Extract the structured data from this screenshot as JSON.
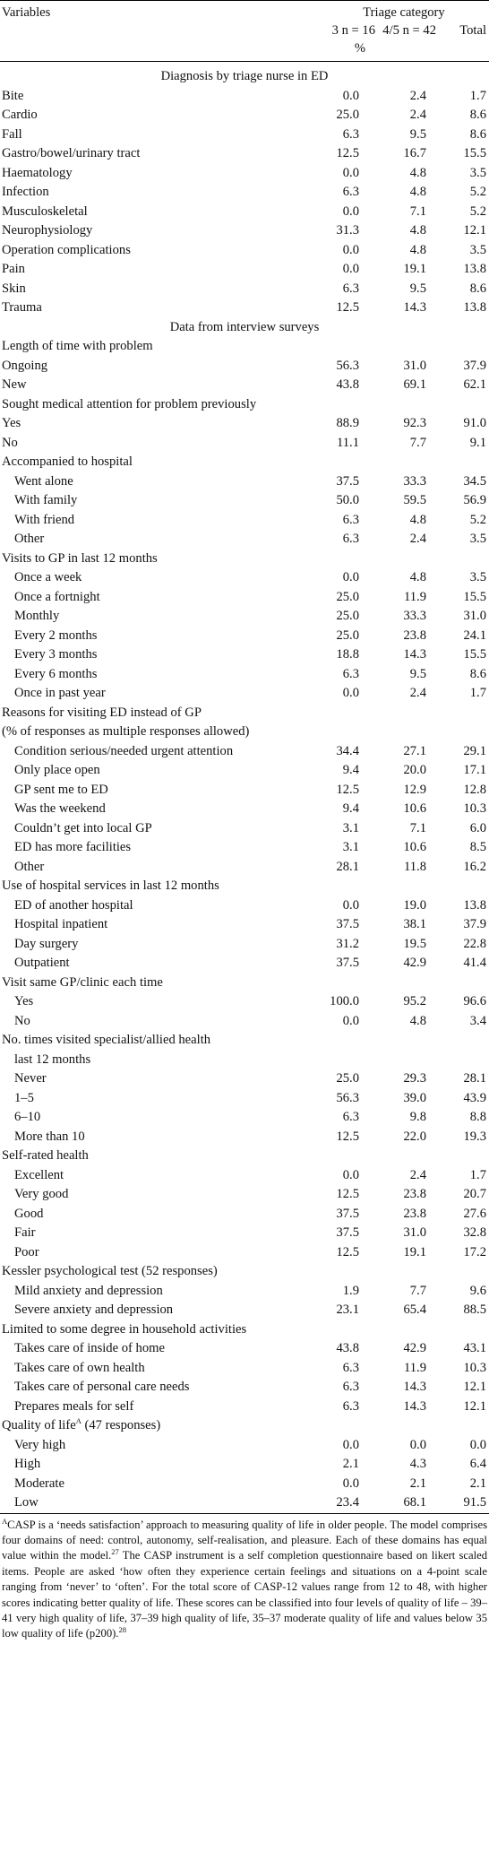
{
  "header": {
    "variables": "Variables",
    "triage_category": "Triage category",
    "col1": "3 n = 16",
    "col2": "4/5 n = 42",
    "col3": "Total",
    "unit": "%"
  },
  "rows": [
    {
      "type": "section",
      "label": "Diagnosis by triage nurse in ED"
    },
    {
      "type": "row",
      "label": "Bite",
      "v": [
        "0.0",
        "2.4",
        "1.7"
      ]
    },
    {
      "type": "row",
      "label": "Cardio",
      "v": [
        "25.0",
        "2.4",
        "8.6"
      ]
    },
    {
      "type": "row",
      "label": "Fall",
      "v": [
        "6.3",
        "9.5",
        "8.6"
      ]
    },
    {
      "type": "row",
      "label": "Gastro/bowel/urinary tract",
      "v": [
        "12.5",
        "16.7",
        "15.5"
      ]
    },
    {
      "type": "row",
      "label": "Haematology",
      "v": [
        "0.0",
        "4.8",
        "3.5"
      ]
    },
    {
      "type": "row",
      "label": "Infection",
      "v": [
        "6.3",
        "4.8",
        "5.2"
      ]
    },
    {
      "type": "row",
      "label": "Musculoskeletal",
      "v": [
        "0.0",
        "7.1",
        "5.2"
      ]
    },
    {
      "type": "row",
      "label": "Neurophysiology",
      "v": [
        "31.3",
        "4.8",
        "12.1"
      ]
    },
    {
      "type": "row",
      "label": "Operation complications",
      "v": [
        "0.0",
        "4.8",
        "3.5"
      ]
    },
    {
      "type": "row",
      "label": "Pain",
      "v": [
        "0.0",
        "19.1",
        "13.8"
      ]
    },
    {
      "type": "row",
      "label": "Skin",
      "v": [
        "6.3",
        "9.5",
        "8.6"
      ]
    },
    {
      "type": "row",
      "label": "Trauma",
      "v": [
        "12.5",
        "14.3",
        "13.8"
      ]
    },
    {
      "type": "section",
      "label": "Data from interview surveys"
    },
    {
      "type": "heading",
      "label": "Length of time with problem"
    },
    {
      "type": "row",
      "label": "Ongoing",
      "v": [
        "56.3",
        "31.0",
        "37.9"
      ]
    },
    {
      "type": "row",
      "label": "New",
      "v": [
        "43.8",
        "69.1",
        "62.1"
      ]
    },
    {
      "type": "heading",
      "label": "Sought medical attention for problem previously"
    },
    {
      "type": "row",
      "label": "Yes",
      "v": [
        "88.9",
        "92.3",
        "91.0"
      ]
    },
    {
      "type": "row",
      "label": "No",
      "v": [
        "11.1",
        "7.7",
        "9.1"
      ]
    },
    {
      "type": "heading",
      "label": "Accompanied to hospital"
    },
    {
      "type": "row",
      "indent": true,
      "label": "Went alone",
      "v": [
        "37.5",
        "33.3",
        "34.5"
      ]
    },
    {
      "type": "row",
      "indent": true,
      "label": "With family",
      "v": [
        "50.0",
        "59.5",
        "56.9"
      ]
    },
    {
      "type": "row",
      "indent": true,
      "label": "With friend",
      "v": [
        "6.3",
        "4.8",
        "5.2"
      ]
    },
    {
      "type": "row",
      "indent": true,
      "label": "Other",
      "v": [
        "6.3",
        "2.4",
        "3.5"
      ]
    },
    {
      "type": "heading",
      "label": "Visits to GP in last 12 months"
    },
    {
      "type": "row",
      "indent": true,
      "label": "Once a week",
      "v": [
        "0.0",
        "4.8",
        "3.5"
      ]
    },
    {
      "type": "row",
      "indent": true,
      "label": "Once a fortnight",
      "v": [
        "25.0",
        "11.9",
        "15.5"
      ]
    },
    {
      "type": "row",
      "indent": true,
      "label": "Monthly",
      "v": [
        "25.0",
        "33.3",
        "31.0"
      ]
    },
    {
      "type": "row",
      "indent": true,
      "label": "Every 2 months",
      "v": [
        "25.0",
        "23.8",
        "24.1"
      ]
    },
    {
      "type": "row",
      "indent": true,
      "label": "Every 3 months",
      "v": [
        "18.8",
        "14.3",
        "15.5"
      ]
    },
    {
      "type": "row",
      "indent": true,
      "label": "Every 6 months",
      "v": [
        "6.3",
        "9.5",
        "8.6"
      ]
    },
    {
      "type": "row",
      "indent": true,
      "label": "Once in past year",
      "v": [
        "0.0",
        "2.4",
        "1.7"
      ]
    },
    {
      "type": "heading",
      "label": "Reasons for visiting ED instead of GP"
    },
    {
      "type": "heading",
      "label": "(% of responses as multiple responses allowed)"
    },
    {
      "type": "row",
      "indent": true,
      "label": "Condition serious/needed urgent attention",
      "v": [
        "34.4",
        "27.1",
        "29.1"
      ]
    },
    {
      "type": "row",
      "indent": true,
      "label": "Only place open",
      "v": [
        "9.4",
        "20.0",
        "17.1"
      ]
    },
    {
      "type": "row",
      "indent": true,
      "label": "GP sent me to ED",
      "v": [
        "12.5",
        "12.9",
        "12.8"
      ]
    },
    {
      "type": "row",
      "indent": true,
      "label": "Was the weekend",
      "v": [
        "9.4",
        "10.6",
        "10.3"
      ]
    },
    {
      "type": "row",
      "indent": true,
      "label": "Couldn’t get into local GP",
      "v": [
        "3.1",
        "7.1",
        "6.0"
      ]
    },
    {
      "type": "row",
      "indent": true,
      "label": "ED has more facilities",
      "v": [
        "3.1",
        "10.6",
        "8.5"
      ]
    },
    {
      "type": "row",
      "indent": true,
      "label": "Other",
      "v": [
        "28.1",
        "11.8",
        "16.2"
      ]
    },
    {
      "type": "heading",
      "label": "Use of hospital services in last 12 months"
    },
    {
      "type": "row",
      "indent": true,
      "label": "ED of another hospital",
      "v": [
        "0.0",
        "19.0",
        "13.8"
      ]
    },
    {
      "type": "row",
      "indent": true,
      "label": "Hospital inpatient",
      "v": [
        "37.5",
        "38.1",
        "37.9"
      ]
    },
    {
      "type": "row",
      "indent": true,
      "label": "Day surgery",
      "v": [
        "31.2",
        "19.5",
        "22.8"
      ]
    },
    {
      "type": "row",
      "indent": true,
      "label": "Outpatient",
      "v": [
        "37.5",
        "42.9",
        "41.4"
      ]
    },
    {
      "type": "heading",
      "label": "Visit same GP/clinic each time"
    },
    {
      "type": "row",
      "indent": true,
      "label": "Yes",
      "v": [
        "100.0",
        "95.2",
        "96.6"
      ]
    },
    {
      "type": "row",
      "indent": true,
      "label": "No",
      "v": [
        "0.0",
        "4.8",
        "3.4"
      ]
    },
    {
      "type": "heading",
      "label": "No. times visited specialist/allied health"
    },
    {
      "type": "heading",
      "indent": true,
      "label": "last 12 months"
    },
    {
      "type": "row",
      "indent": true,
      "label": "Never",
      "v": [
        "25.0",
        "29.3",
        "28.1"
      ]
    },
    {
      "type": "row",
      "indent": true,
      "label": "1–5",
      "v": [
        "56.3",
        "39.0",
        "43.9"
      ]
    },
    {
      "type": "row",
      "indent": true,
      "label": "6–10",
      "v": [
        "6.3",
        "9.8",
        "8.8"
      ]
    },
    {
      "type": "row",
      "indent": true,
      "label": "More than 10",
      "v": [
        "12.5",
        "22.0",
        "19.3"
      ]
    },
    {
      "type": "heading",
      "label": "Self-rated health"
    },
    {
      "type": "row",
      "indent": true,
      "label": "Excellent",
      "v": [
        "0.0",
        "2.4",
        "1.7"
      ]
    },
    {
      "type": "row",
      "indent": true,
      "label": "Very good",
      "v": [
        "12.5",
        "23.8",
        "20.7"
      ]
    },
    {
      "type": "row",
      "indent": true,
      "label": "Good",
      "v": [
        "37.5",
        "23.8",
        "27.6"
      ]
    },
    {
      "type": "row",
      "indent": true,
      "label": "Fair",
      "v": [
        "37.5",
        "31.0",
        "32.8"
      ]
    },
    {
      "type": "row",
      "indent": true,
      "label": "Poor",
      "v": [
        "12.5",
        "19.1",
        "17.2"
      ]
    },
    {
      "type": "heading",
      "label": "Kessler psychological test (52 responses)"
    },
    {
      "type": "row",
      "indent": true,
      "label": "Mild anxiety and depression",
      "v": [
        "1.9",
        "7.7",
        "9.6"
      ]
    },
    {
      "type": "row",
      "indent": true,
      "label": "Severe anxiety and depression",
      "v": [
        "23.1",
        "65.4",
        "88.5"
      ]
    },
    {
      "type": "heading",
      "label": "Limited to some degree in household activities"
    },
    {
      "type": "row",
      "indent": true,
      "label": "Takes care of inside of home",
      "v": [
        "43.8",
        "42.9",
        "43.1"
      ]
    },
    {
      "type": "row",
      "indent": true,
      "label": "Takes care of own health",
      "v": [
        "6.3",
        "11.9",
        "10.3"
      ]
    },
    {
      "type": "row",
      "indent": true,
      "label": "Takes care of personal care needs",
      "v": [
        "6.3",
        "14.3",
        "12.1"
      ]
    },
    {
      "type": "row",
      "indent": true,
      "label": "Prepares meals for self",
      "v": [
        "6.3",
        "14.3",
        "12.1"
      ]
    },
    {
      "type": "heading",
      "label": "Quality of life",
      "sup": "A",
      "suffix": " (47 responses)"
    },
    {
      "type": "row",
      "indent": true,
      "label": "Very high",
      "v": [
        "0.0",
        "0.0",
        "0.0"
      ]
    },
    {
      "type": "row",
      "indent": true,
      "label": "High",
      "v": [
        "2.1",
        "4.3",
        "6.4"
      ]
    },
    {
      "type": "row",
      "indent": true,
      "label": "Moderate",
      "v": [
        "0.0",
        "2.1",
        "2.1"
      ]
    },
    {
      "type": "row",
      "indent": true,
      "label": "Low",
      "v": [
        "23.4",
        "68.1",
        "91.5"
      ]
    }
  ],
  "footnote": {
    "mark": "A",
    "part1": "CASP is a ‘needs satisfaction’ approach to measuring quality of life in older people. The model comprises four domains of need: control, autonomy, self-realisation, and pleasure. Each of these domains has equal value within the model.",
    "ref1": "27",
    "part2": " The CASP instrument is a self completion questionnaire based on likert scaled items. People are asked ‘how often they experience certain feelings and situations on a 4-point scale ranging from ‘never’ to ‘often’. For the total score of CASP-12 values range from 12 to 48, with higher scores indicating better quality of life. These scores can be classified into four levels of quality of life – 39–41 very high quality of life, 37–39 high quality of life, 35–37 moderate quality of life and values below 35 low quality of life (p200).",
    "ref2": "28"
  }
}
